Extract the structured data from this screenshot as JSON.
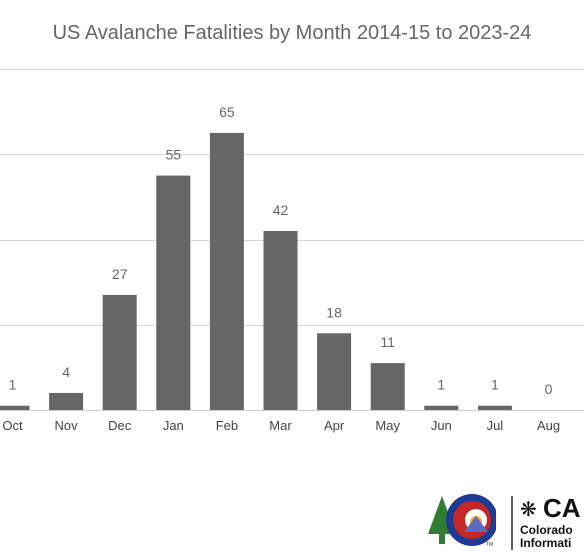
{
  "chart_data": {
    "type": "bar",
    "title": "US Avalanche Fatalities by Month 2014-15 to 2023-24",
    "categories": [
      "Oct",
      "Nov",
      "Dec",
      "Jan",
      "Feb",
      "Mar",
      "Apr",
      "May",
      "Jun",
      "Jul",
      "Aug"
    ],
    "values": [
      1,
      4,
      27,
      55,
      65,
      42,
      18,
      11,
      1,
      1,
      0
    ],
    "ylim": [
      0,
      80
    ],
    "gridlines": [
      0,
      20,
      40,
      60,
      80
    ],
    "grid": true,
    "data_labels": true,
    "bar_color": "#666666",
    "grid_color": "#d9d9d9"
  },
  "logo": {
    "brand_text": "CA",
    "line1": "Colorado",
    "line2": "Informati",
    "tm": "TM"
  }
}
